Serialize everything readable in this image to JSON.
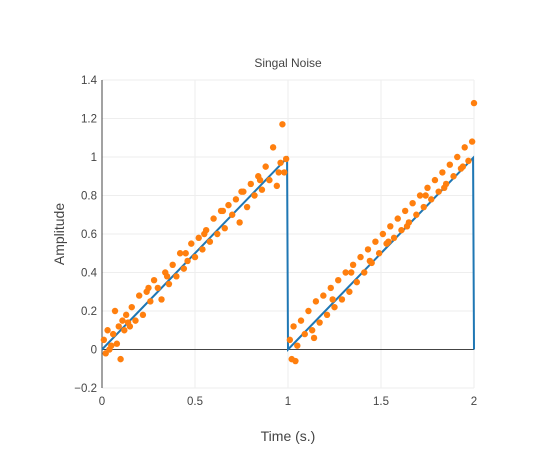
{
  "chart_data": {
    "type": "scatter",
    "title": "Singal Noise",
    "xlabel": "Time (s.)",
    "ylabel": "Amplitude",
    "xlim": [
      0,
      2
    ],
    "ylim": [
      -0.2,
      1.4
    ],
    "xticks": [
      0,
      0.5,
      1,
      1.5,
      2
    ],
    "xtick_labels": [
      "0",
      "0.5",
      "1",
      "1.5",
      "2"
    ],
    "yticks": [
      -0.2,
      0,
      0.2,
      0.4,
      0.6,
      0.8,
      1,
      1.2,
      1.4
    ],
    "ytick_labels": [
      "−0.2",
      "0",
      "0.2",
      "0.4",
      "0.6",
      "0.8",
      "1",
      "1.2",
      "1.4"
    ],
    "grid": true,
    "legend": "none",
    "series": [
      {
        "type": "line",
        "color": "#1f77b4",
        "x": [
          0,
          0.995,
          1.0,
          1.995,
          2.0
        ],
        "y": [
          0,
          0.995,
          0.0,
          0.995,
          0.0
        ]
      },
      {
        "type": "scatter",
        "color": "#ff7f0e",
        "x": [
          0.01,
          0.02,
          0.03,
          0.05,
          0.06,
          0.07,
          0.08,
          0.09,
          0.1,
          0.11,
          0.12,
          0.13,
          0.15,
          0.16,
          0.18,
          0.2,
          0.22,
          0.24,
          0.26,
          0.28,
          0.3,
          0.32,
          0.34,
          0.36,
          0.38,
          0.4,
          0.42,
          0.44,
          0.46,
          0.48,
          0.5,
          0.52,
          0.54,
          0.56,
          0.58,
          0.6,
          0.62,
          0.64,
          0.66,
          0.68,
          0.7,
          0.72,
          0.74,
          0.76,
          0.78,
          0.8,
          0.82,
          0.84,
          0.86,
          0.88,
          0.9,
          0.92,
          0.94,
          0.96,
          0.97,
          0.98,
          0.99,
          1.01,
          1.02,
          1.03,
          1.05,
          1.07,
          1.09,
          1.11,
          1.13,
          1.15,
          1.17,
          1.19,
          1.21,
          1.23,
          1.25,
          1.27,
          1.29,
          1.31,
          1.33,
          1.35,
          1.37,
          1.39,
          1.41,
          1.43,
          1.45,
          1.47,
          1.49,
          1.51,
          1.53,
          1.55,
          1.57,
          1.59,
          1.61,
          1.63,
          1.65,
          1.67,
          1.69,
          1.71,
          1.73,
          1.75,
          1.77,
          1.79,
          1.81,
          1.83,
          1.85,
          1.87,
          1.89,
          1.91,
          1.93,
          1.95,
          1.97,
          1.99,
          2.0,
          0.04,
          0.14,
          0.25,
          0.35,
          0.45,
          0.55,
          0.65,
          0.75,
          0.85,
          0.95,
          1.04,
          1.14,
          1.24,
          1.34,
          1.44,
          1.54,
          1.64,
          1.74,
          1.84,
          1.94
        ],
        "y": [
          0.05,
          -0.02,
          0.1,
          0.02,
          0.08,
          0.2,
          0.03,
          0.12,
          -0.05,
          0.15,
          0.1,
          0.18,
          0.12,
          0.22,
          0.15,
          0.28,
          0.18,
          0.3,
          0.25,
          0.36,
          0.32,
          0.26,
          0.4,
          0.34,
          0.44,
          0.38,
          0.5,
          0.42,
          0.46,
          0.55,
          0.48,
          0.58,
          0.52,
          0.62,
          0.56,
          0.68,
          0.6,
          0.72,
          0.63,
          0.75,
          0.7,
          0.78,
          0.66,
          0.82,
          0.74,
          0.86,
          0.8,
          0.9,
          0.83,
          0.95,
          0.88,
          1.05,
          0.85,
          0.97,
          1.17,
          0.92,
          0.99,
          0.05,
          -0.05,
          0.12,
          0.02,
          0.15,
          0.08,
          0.2,
          0.1,
          0.25,
          0.14,
          0.28,
          0.18,
          0.32,
          0.22,
          0.36,
          0.26,
          0.4,
          0.3,
          0.44,
          0.35,
          0.48,
          0.4,
          0.52,
          0.45,
          0.56,
          0.5,
          0.6,
          0.55,
          0.64,
          0.58,
          0.68,
          0.62,
          0.72,
          0.66,
          0.76,
          0.7,
          0.8,
          0.74,
          0.84,
          0.78,
          0.88,
          0.82,
          0.92,
          0.86,
          0.96,
          0.9,
          1.0,
          0.94,
          1.05,
          0.98,
          1.08,
          1.28,
          0.0,
          0.14,
          0.32,
          0.38,
          0.5,
          0.6,
          0.72,
          0.82,
          0.88,
          0.92,
          -0.06,
          0.06,
          0.26,
          0.4,
          0.46,
          0.56,
          0.64,
          0.8,
          0.84,
          0.95
        ]
      }
    ]
  }
}
